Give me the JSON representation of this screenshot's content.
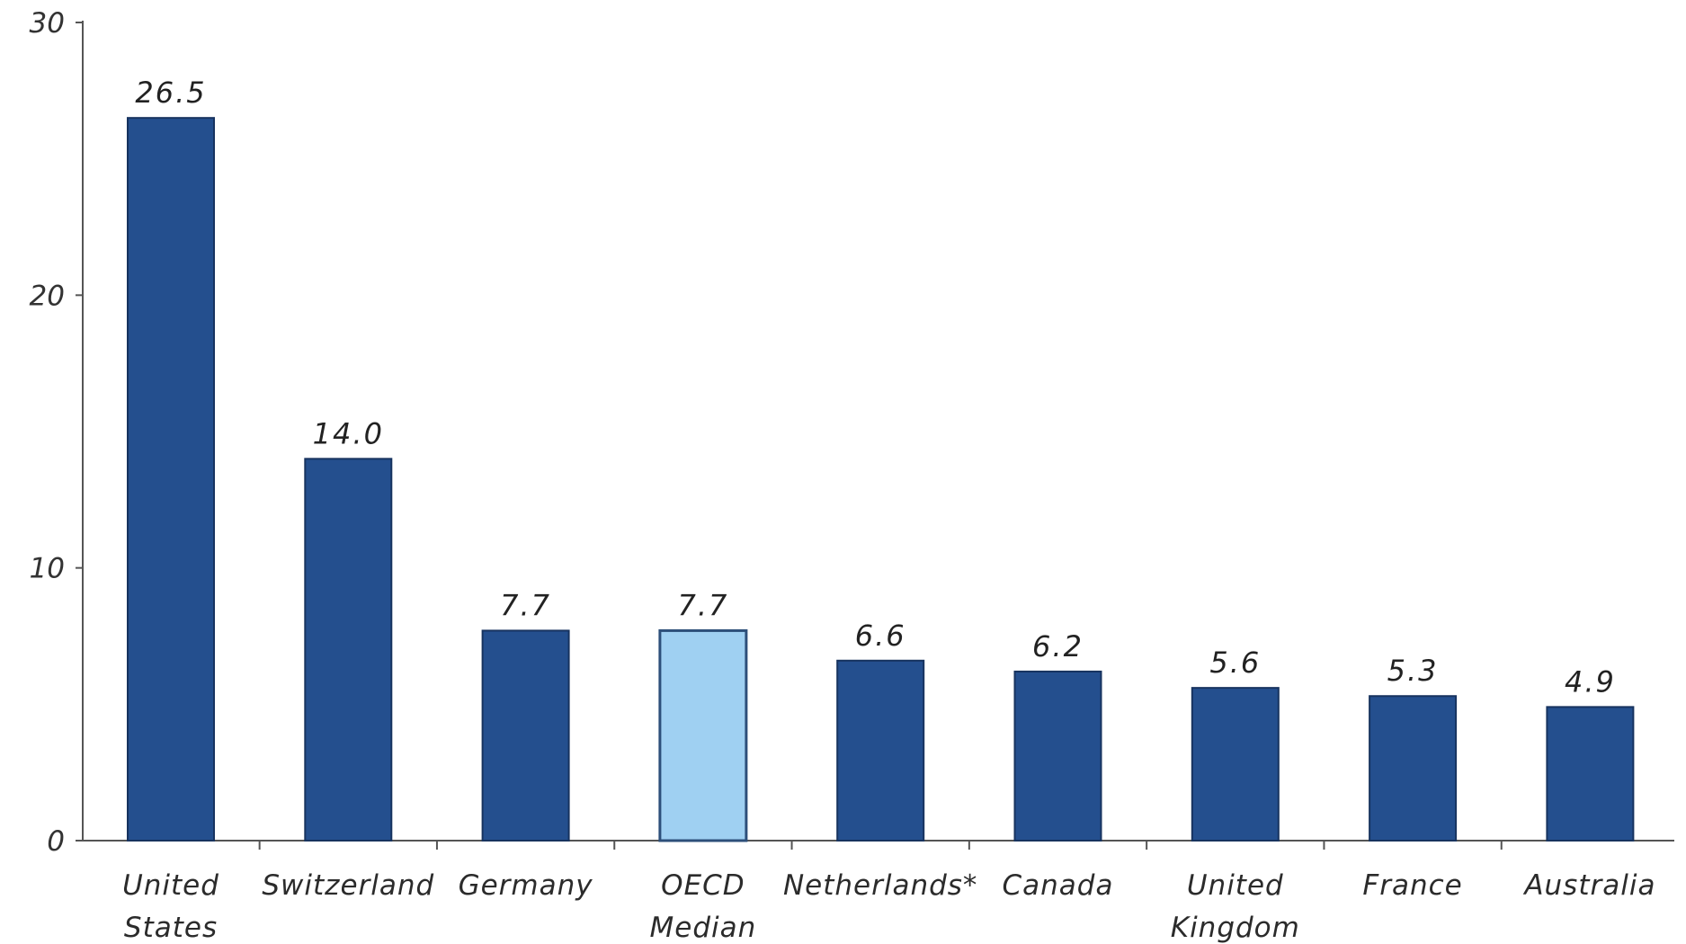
{
  "chart_data": {
    "type": "bar",
    "categories": [
      [
        "United",
        "States"
      ],
      [
        "Switzerland"
      ],
      [
        "Germany"
      ],
      [
        "OECD",
        "Median"
      ],
      [
        "Netherlands*"
      ],
      [
        "Canada"
      ],
      [
        "United",
        "Kingdom"
      ],
      [
        "France"
      ],
      [
        "Australia"
      ]
    ],
    "values": [
      26.5,
      14.0,
      7.7,
      7.7,
      6.6,
      6.2,
      5.6,
      5.3,
      4.9
    ],
    "value_labels": [
      "26.5",
      "14.0",
      "7.7",
      "7.7",
      "6.6",
      "6.2",
      "5.6",
      "5.3",
      "4.9"
    ],
    "highlight_index": 3,
    "ylim": [
      0,
      30
    ],
    "yticks": [
      0,
      10,
      20,
      30
    ],
    "title": "",
    "xlabel": "",
    "ylabel": "",
    "grid": false,
    "colors": {
      "bar": "#244f8e",
      "bar_edge": "#17335f",
      "highlight": "#9fd0f2",
      "highlight_edge": "#2d4f7a",
      "axis": "#555555"
    }
  }
}
